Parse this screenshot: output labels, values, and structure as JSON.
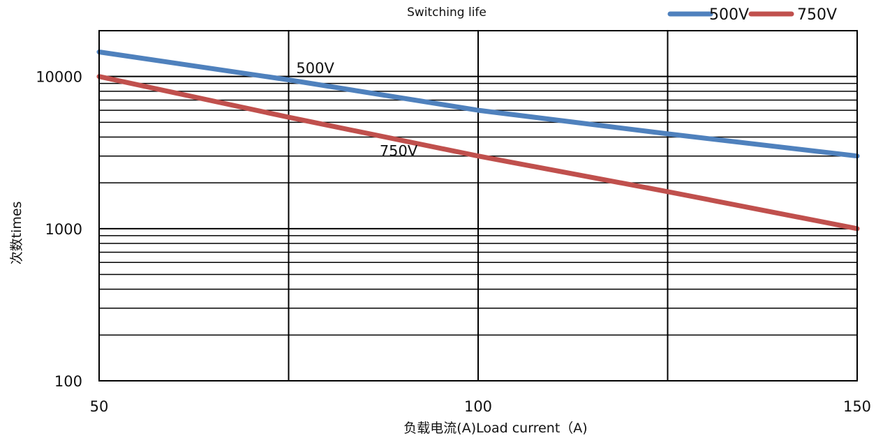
{
  "chart_data": {
    "type": "line",
    "title": "",
    "subtitle": "Switching life",
    "xlabel": "负载电流(A)Load current（A)",
    "ylabel": "次数times",
    "xlim": [
      50,
      150
    ],
    "ylim": [
      100,
      20000
    ],
    "yscale": "log",
    "x_ticks": [
      50,
      100,
      150
    ],
    "x_tick_labels": [
      "50",
      "100",
      "150"
    ],
    "x_grid": [
      75,
      100,
      125
    ],
    "y_ticks": [
      100,
      1000,
      10000
    ],
    "y_tick_labels": [
      "100",
      "1000",
      "10000"
    ],
    "y_minor_grid": [
      200,
      300,
      400,
      500,
      600,
      700,
      800,
      900,
      2000,
      3000,
      4000,
      5000,
      6000,
      7000,
      8000,
      9000
    ],
    "grid": true,
    "legend_position": "top-right",
    "series": [
      {
        "name": "500V",
        "color": "#4f81bd",
        "x": [
          50,
          75,
          100,
          125,
          150
        ],
        "y": [
          14500,
          9500,
          6000,
          4200,
          3000
        ],
        "label": "500V",
        "label_at": [
          76,
          10500
        ]
      },
      {
        "name": "750V",
        "color": "#c0504d",
        "x": [
          50,
          75,
          100,
          125,
          150
        ],
        "y": [
          10000,
          5400,
          3000,
          1750,
          1000
        ],
        "label": "750V",
        "label_at": [
          87,
          3000
        ]
      }
    ]
  }
}
